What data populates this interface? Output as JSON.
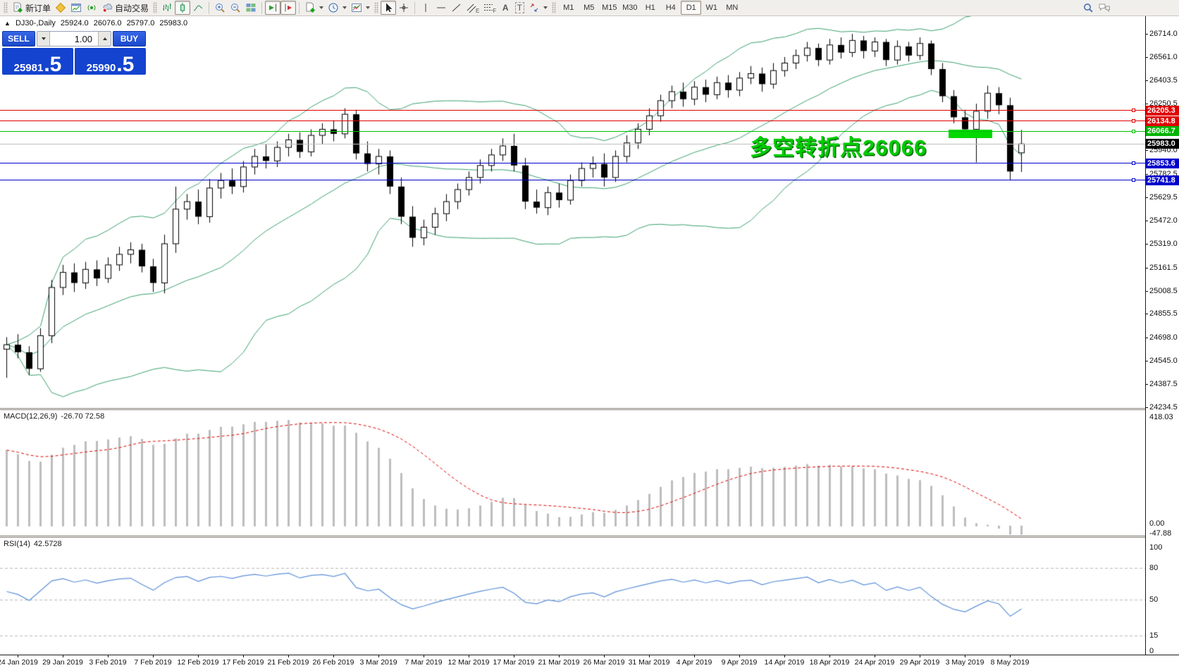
{
  "toolbar": {
    "new_order": "新订单",
    "auto_trading": "自动交易",
    "text_tool": "A",
    "text_label_tool": "T",
    "channel_letter": "E",
    "fibo_letter": "F",
    "timeframes": [
      "M1",
      "M5",
      "M15",
      "M30",
      "H1",
      "H4",
      "D1",
      "W1",
      "MN"
    ],
    "active_timeframe": "D1"
  },
  "chart_header": {
    "collapse_icon": "▲",
    "symbol_period": "DJ30-,Daily",
    "open": "25924.0",
    "high": "26076.0",
    "low": "25797.0",
    "close": "25983.0"
  },
  "order_panel": {
    "sell_label": "SELL",
    "buy_label": "BUY",
    "volume": "1.00",
    "sell_price": "25981",
    "sell_frac": ".5",
    "buy_price": "25990",
    "buy_frac": ".5"
  },
  "annotation": {
    "text": "多空转折点26066",
    "color": "#00cc00"
  },
  "highlight_zone": {
    "price_top": 26080,
    "price_bottom": 26020,
    "bar_from": 84,
    "bar_to": 87,
    "color": "#00d800"
  },
  "price_lines": [
    {
      "label": "26205.3",
      "price": 26205.3,
      "line_color": "#e00000",
      "badge_bg": "#e00000",
      "thickness": 1,
      "marker": true
    },
    {
      "label": "26134.8",
      "price": 26134.8,
      "line_color": "#e00000",
      "badge_bg": "#e00000",
      "thickness": 1,
      "marker": true
    },
    {
      "label": "26066.7",
      "price": 26066.7,
      "line_color": "#00c000",
      "badge_bg": "#00b400",
      "thickness": 1,
      "marker": true
    },
    {
      "label": "25983.0",
      "price": 25983.0,
      "line_color": "#c0c0c0",
      "badge_bg": "#000000",
      "thickness": 1,
      "marker": false
    },
    {
      "label": "25853.6",
      "price": 25853.6,
      "line_color": "#0000cc",
      "badge_bg": "#0000cc",
      "thickness": 1,
      "marker": true
    },
    {
      "label": "25741.8",
      "price": 25741.8,
      "line_color": "#0000cc",
      "badge_bg": "#0000cc",
      "thickness": 1,
      "marker": true
    }
  ],
  "macd_pane": {
    "label": "MACD(12,26,9)",
    "values": "-26.70 72.58",
    "axis_max": "418.03",
    "axis_zero": "0.00",
    "axis_min": "-47.88"
  },
  "rsi_pane": {
    "label": "RSI(14)",
    "value": "42.5728",
    "levels": [
      100,
      80,
      50,
      15,
      0
    ],
    "dashed_levels": [
      80,
      50,
      15
    ]
  },
  "chart_data": {
    "type": "candlestick",
    "title": "DJ30-,Daily",
    "timeframe": "D1",
    "current_bar": {
      "open": 25924.0,
      "high": 26076.0,
      "low": 25797.0,
      "close": 25983.0
    },
    "ylim": [
      24234.5,
      26714.0
    ],
    "price_axis_ticks": [
      "26714.0",
      "26561.0",
      "26403.5",
      "26250.5",
      "25940.0",
      "25782.5",
      "25629.5",
      "25472.0",
      "25319.0",
      "25161.5",
      "25008.5",
      "24855.5",
      "24698.0",
      "24545.0",
      "24387.5",
      "24234.5"
    ],
    "date_ticks": [
      "24 Jan 2019",
      "29 Jan 2019",
      "3 Feb 2019",
      "7 Feb 2019",
      "12 Feb 2019",
      "17 Feb 2019",
      "21 Feb 2019",
      "26 Feb 2019",
      "3 Mar 2019",
      "7 Mar 2019",
      "12 Mar 2019",
      "17 Mar 2019",
      "21 Mar 2019",
      "26 Mar 2019",
      "31 Mar 2019",
      "4 Apr 2019",
      "9 Apr 2019",
      "14 Apr 2019",
      "18 Apr 2019",
      "24 Apr 2019",
      "29 Apr 2019",
      "3 May 2019",
      "8 May 2019"
    ],
    "tick_first_bar": 1,
    "tick_bar_step": 4,
    "indicators": [
      "Bollinger Bands",
      "MACD(12,26,9)",
      "RSI(14)"
    ],
    "ohlc": [
      [
        24620,
        24700,
        24430,
        24650
      ],
      [
        24650,
        24720,
        24560,
        24600
      ],
      [
        24600,
        24640,
        24450,
        24490
      ],
      [
        24490,
        24760,
        24470,
        24710
      ],
      [
        24710,
        25080,
        24660,
        25030
      ],
      [
        25030,
        25180,
        24980,
        25130
      ],
      [
        25130,
        25190,
        25000,
        25060
      ],
      [
        25060,
        25200,
        25020,
        25150
      ],
      [
        25150,
        25210,
        25040,
        25090
      ],
      [
        25090,
        25230,
        25060,
        25180
      ],
      [
        25180,
        25300,
        25140,
        25250
      ],
      [
        25250,
        25330,
        25190,
        25280
      ],
      [
        25280,
        25320,
        25130,
        25170
      ],
      [
        25170,
        25220,
        25000,
        25060
      ],
      [
        25060,
        25380,
        24990,
        25320
      ],
      [
        25320,
        25700,
        25260,
        25550
      ],
      [
        25550,
        25650,
        25480,
        25600
      ],
      [
        25600,
        25680,
        25450,
        25500
      ],
      [
        25500,
        25750,
        25460,
        25690
      ],
      [
        25690,
        25790,
        25620,
        25740
      ],
      [
        25740,
        25820,
        25650,
        25700
      ],
      [
        25700,
        25870,
        25660,
        25830
      ],
      [
        25830,
        25950,
        25780,
        25900
      ],
      [
        25900,
        25980,
        25820,
        25870
      ],
      [
        25870,
        26000,
        25830,
        25960
      ],
      [
        25960,
        26050,
        25900,
        26010
      ],
      [
        26010,
        26060,
        25890,
        25930
      ],
      [
        25930,
        26080,
        25900,
        26040
      ],
      [
        26040,
        26120,
        25980,
        26080
      ],
      [
        26080,
        26140,
        26000,
        26050
      ],
      [
        26050,
        26220,
        26020,
        26180
      ],
      [
        26180,
        26210,
        25880,
        25920
      ],
      [
        25920,
        26000,
        25800,
        25850
      ],
      [
        25850,
        25950,
        25780,
        25900
      ],
      [
        25900,
        25940,
        25650,
        25700
      ],
      [
        25700,
        25760,
        25450,
        25500
      ],
      [
        25500,
        25570,
        25300,
        25360
      ],
      [
        25360,
        25480,
        25310,
        25430
      ],
      [
        25430,
        25560,
        25380,
        25520
      ],
      [
        25520,
        25650,
        25470,
        25600
      ],
      [
        25600,
        25720,
        25550,
        25680
      ],
      [
        25680,
        25800,
        25640,
        25760
      ],
      [
        25760,
        25880,
        25720,
        25840
      ],
      [
        25840,
        25950,
        25800,
        25910
      ],
      [
        25910,
        26020,
        25870,
        25970
      ],
      [
        25970,
        26050,
        25800,
        25840
      ],
      [
        25840,
        25890,
        25550,
        25600
      ],
      [
        25600,
        25680,
        25520,
        25560
      ],
      [
        25560,
        25700,
        25510,
        25660
      ],
      [
        25660,
        25720,
        25560,
        25610
      ],
      [
        25610,
        25780,
        25580,
        25740
      ],
      [
        25740,
        25860,
        25700,
        25820
      ],
      [
        25820,
        25900,
        25760,
        25850
      ],
      [
        25850,
        25920,
        25700,
        25760
      ],
      [
        25760,
        25940,
        25730,
        25900
      ],
      [
        25900,
        26040,
        25860,
        25990
      ],
      [
        25990,
        26120,
        25950,
        26080
      ],
      [
        26080,
        26220,
        26040,
        26170
      ],
      [
        26170,
        26310,
        26130,
        26270
      ],
      [
        26270,
        26370,
        26220,
        26330
      ],
      [
        26330,
        26390,
        26230,
        26280
      ],
      [
        26280,
        26400,
        26240,
        26360
      ],
      [
        26360,
        26410,
        26260,
        26310
      ],
      [
        26310,
        26430,
        26280,
        26390
      ],
      [
        26390,
        26440,
        26290,
        26340
      ],
      [
        26340,
        26460,
        26300,
        26420
      ],
      [
        26420,
        26500,
        26380,
        26450
      ],
      [
        26450,
        26490,
        26330,
        26380
      ],
      [
        26380,
        26520,
        26350,
        26470
      ],
      [
        26470,
        26560,
        26430,
        26520
      ],
      [
        26520,
        26610,
        26480,
        26570
      ],
      [
        26570,
        26660,
        26530,
        26620
      ],
      [
        26620,
        26650,
        26500,
        26540
      ],
      [
        26540,
        26680,
        26510,
        26640
      ],
      [
        26640,
        26690,
        26550,
        26590
      ],
      [
        26590,
        26714,
        26560,
        26670
      ],
      [
        26670,
        26700,
        26550,
        26600
      ],
      [
        26600,
        26690,
        26560,
        26660
      ],
      [
        26660,
        26680,
        26500,
        26540
      ],
      [
        26540,
        26670,
        26510,
        26630
      ],
      [
        26630,
        26660,
        26530,
        26570
      ],
      [
        26570,
        26690,
        26540,
        26650
      ],
      [
        26650,
        26670,
        26440,
        26480
      ],
      [
        26480,
        26520,
        26260,
        26300
      ],
      [
        26300,
        26340,
        26120,
        26160
      ],
      [
        26160,
        26210,
        26040,
        26080
      ],
      [
        26080,
        26250,
        25860,
        26200
      ],
      [
        26200,
        26370,
        26150,
        26320
      ],
      [
        26320,
        26360,
        26180,
        26240
      ],
      [
        26240,
        26290,
        25742,
        25800
      ],
      [
        25924,
        26076,
        25797,
        25983
      ]
    ]
  }
}
